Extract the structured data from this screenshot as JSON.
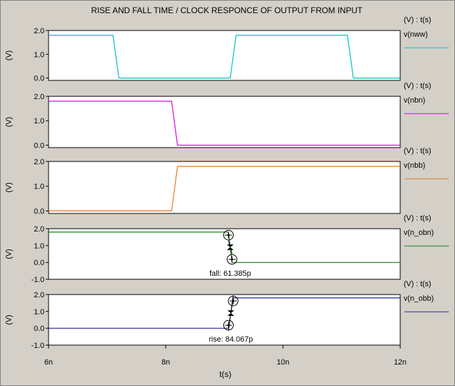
{
  "title": "RISE AND FALL TIME / CLOCK RESPONCE OF OUTPUT FROM INPUT",
  "chart_data": {
    "type": "line",
    "xlabel": "t(s)",
    "xlim": [
      6,
      12
    ],
    "x_unit": "ns",
    "x_ticks": [
      {
        "value": 6,
        "label": "6n"
      },
      {
        "value": 8,
        "label": "8n"
      },
      {
        "value": 10,
        "label": "10n"
      },
      {
        "value": 12,
        "label": "12n"
      }
    ],
    "panels": [
      {
        "name": "nww",
        "axis_label": "(V) : t(s)",
        "legend": "v(nww)",
        "ylabel": "(V)",
        "color": "#00c0c0",
        "ylim": [
          -0.1,
          2.0
        ],
        "y_ticks": [
          "0.0",
          "1.0",
          "2.0"
        ],
        "y_tick_values": [
          0,
          1,
          2
        ],
        "x": [
          6.0,
          7.1,
          7.2,
          9.1,
          9.2,
          11.1,
          11.2,
          12.0
        ],
        "y": [
          1.8,
          1.8,
          0.0,
          0.0,
          1.8,
          1.8,
          0.0,
          0.0
        ]
      },
      {
        "name": "nbn",
        "axis_label": "(V) : t(s)",
        "legend": "v(nbn)",
        "ylabel": "(V)",
        "color": "#e000e0",
        "ylim": [
          -0.1,
          2.0
        ],
        "y_ticks": [
          "0.0",
          "1.0",
          "2.0"
        ],
        "y_tick_values": [
          0,
          1,
          2
        ],
        "x": [
          6.0,
          8.1,
          8.2,
          12.0
        ],
        "y": [
          1.8,
          1.8,
          0.0,
          0.0
        ]
      },
      {
        "name": "nbb",
        "axis_label": "(V) : t(s)",
        "legend": "v(nbb)",
        "ylabel": "(V)",
        "color": "#e07820",
        "ylim": [
          -0.1,
          2.0
        ],
        "y_ticks": [
          "0.0",
          "1.0",
          "2.0"
        ],
        "y_tick_values": [
          0,
          1,
          2
        ],
        "x": [
          6.0,
          8.1,
          8.2,
          12.0
        ],
        "y": [
          0.0,
          0.0,
          1.8,
          1.8
        ]
      },
      {
        "name": "n_obn",
        "axis_label": "(V) : t(s)",
        "legend": "v(n_obn)",
        "ylabel": "(V)",
        "color": "#108010",
        "ylim": [
          -1.0,
          2.0
        ],
        "y_ticks": [
          "-1.0",
          "0.0",
          "1.0",
          "2.0"
        ],
        "y_tick_values": [
          -1,
          0,
          1,
          2
        ],
        "x": [
          6.0,
          9.07,
          9.13,
          12.0
        ],
        "y": [
          1.8,
          1.8,
          0.0,
          0.0
        ],
        "measurement": {
          "label": "fall: 61.385p",
          "x1": 9.07,
          "y1": 1.62,
          "x2": 9.13,
          "y2": 0.18
        }
      },
      {
        "name": "n_obb",
        "axis_label": "(V) : t(s)",
        "legend": "v(n_obb)",
        "ylabel": "(V)",
        "color": "#202090",
        "ylim": [
          -1.0,
          2.0
        ],
        "y_ticks": [
          "-1.0",
          "0.0",
          "1.0",
          "2.0"
        ],
        "y_tick_values": [
          -1,
          0,
          1,
          2
        ],
        "x": [
          6.0,
          9.07,
          9.15,
          12.0
        ],
        "y": [
          0.0,
          0.0,
          1.8,
          1.8
        ],
        "measurement": {
          "label": "rise: 84.067p",
          "x1": 9.07,
          "y1": 0.18,
          "x2": 9.15,
          "y2": 1.62
        }
      }
    ]
  }
}
